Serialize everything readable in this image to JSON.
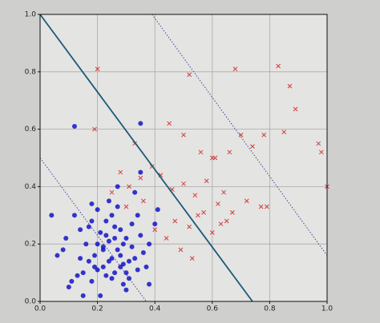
{
  "chart_data": {
    "type": "scatter",
    "xlim": [
      0,
      1
    ],
    "ylim": [
      0,
      1
    ],
    "xticks": [
      {
        "value": 0,
        "label": "0.0"
      },
      0.2,
      0.4,
      0.6,
      0.8,
      {
        "value": 1,
        "label": "1.0"
      }
    ],
    "yticks": [
      {
        "value": 0,
        "label": "0.0"
      },
      0.2,
      0.4,
      0.6,
      0.8,
      {
        "value": 1,
        "label": "1.0"
      }
    ],
    "grid": true,
    "series": [
      {
        "color": "#1414c8",
        "marker": "o",
        "x": [
          0.12,
          0.35,
          0.04,
          0.09,
          0.14,
          0.18,
          0.2,
          0.22,
          0.25,
          0.28,
          0.3,
          0.32,
          0.15,
          0.17,
          0.19,
          0.21,
          0.23,
          0.24,
          0.26,
          0.27,
          0.29,
          0.31,
          0.33,
          0.34,
          0.36,
          0.38,
          0.12,
          0.1,
          0.08,
          0.16,
          0.18,
          0.22,
          0.25,
          0.28,
          0.3,
          0.2,
          0.23,
          0.26,
          0.29,
          0.32,
          0.35,
          0.24,
          0.27,
          0.21,
          0.19,
          0.17,
          0.14,
          0.28,
          0.31,
          0.34,
          0.22,
          0.25,
          0.3,
          0.26,
          0.18,
          0.37,
          0.4,
          0.15,
          0.33,
          0.27,
          0.23,
          0.2,
          0.29,
          0.13,
          0.41,
          0.38,
          0.11,
          0.06,
          0.24,
          0.35
        ],
        "values": [
          0.61,
          0.62,
          0.3,
          0.22,
          0.25,
          0.28,
          0.2,
          0.18,
          0.15,
          0.12,
          0.22,
          0.19,
          0.1,
          0.14,
          0.16,
          0.24,
          0.09,
          0.21,
          0.26,
          0.18,
          0.13,
          0.08,
          0.15,
          0.11,
          0.17,
          0.2,
          0.3,
          0.05,
          0.18,
          0.2,
          0.07,
          0.12,
          0.3,
          0.25,
          0.04,
          0.32,
          0.28,
          0.1,
          0.06,
          0.27,
          0.23,
          0.35,
          0.33,
          0.02,
          0.12,
          0.26,
          0.15,
          0.16,
          0.14,
          0.3,
          0.19,
          0.08,
          0.1,
          0.22,
          0.34,
          0.12,
          0.27,
          0.02,
          0.38,
          0.4,
          0.23,
          0.11,
          0.2,
          0.09,
          0.32,
          0.06,
          0.07,
          0.16,
          0.14,
          0.45
        ]
      },
      {
        "color": "#d23c3c",
        "marker": "x",
        "x": [
          0.2,
          0.52,
          0.68,
          0.83,
          0.87,
          0.89,
          0.6,
          0.66,
          0.33,
          0.19,
          0.45,
          0.5,
          0.56,
          0.61,
          0.7,
          0.74,
          0.78,
          0.85,
          0.97,
          0.98,
          0.28,
          0.31,
          0.35,
          0.39,
          0.42,
          0.46,
          0.5,
          0.54,
          0.58,
          0.62,
          0.64,
          0.67,
          0.77,
          0.79,
          1.0,
          0.47,
          0.52,
          0.57,
          0.63,
          0.36,
          0.4,
          0.44,
          0.55,
          0.6,
          0.65,
          0.72,
          0.25,
          0.3,
          0.49,
          0.53
        ],
        "values": [
          0.81,
          0.79,
          0.81,
          0.82,
          0.75,
          0.67,
          0.5,
          0.52,
          0.55,
          0.6,
          0.62,
          0.58,
          0.52,
          0.5,
          0.58,
          0.54,
          0.58,
          0.59,
          0.55,
          0.52,
          0.45,
          0.4,
          0.43,
          0.47,
          0.44,
          0.39,
          0.41,
          0.37,
          0.42,
          0.34,
          0.38,
          0.31,
          0.33,
          0.33,
          0.4,
          0.28,
          0.26,
          0.31,
          0.27,
          0.35,
          0.25,
          0.22,
          0.3,
          0.24,
          0.28,
          0.35,
          0.38,
          0.33,
          0.18,
          0.15
        ]
      }
    ],
    "lines": [
      {
        "x": [
          0,
          0.74
        ],
        "y": [
          1,
          0
        ],
        "color": "#1d5a78",
        "style": "solid"
      },
      {
        "x": [
          0,
          0.37
        ],
        "y": [
          0.5,
          0
        ],
        "color": "#3a4a9a",
        "style": "dotted"
      },
      {
        "x": [
          0.39,
          1
        ],
        "y": [
          1,
          0.16
        ],
        "color": "#3a4a9a",
        "style": "dotted"
      }
    ]
  }
}
